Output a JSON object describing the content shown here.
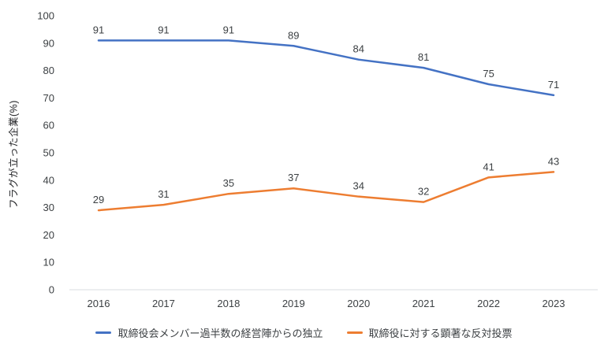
{
  "chart_data": {
    "type": "line",
    "title": "",
    "xlabel": "",
    "ylabel": "フラグが立った企業(%)",
    "ylim": [
      0,
      100
    ],
    "yticks": [
      0,
      10,
      20,
      30,
      40,
      50,
      60,
      70,
      80,
      90,
      100
    ],
    "grid": false,
    "legend_position": "bottom-center",
    "categories": [
      "2016",
      "2017",
      "2018",
      "2019",
      "2020",
      "2021",
      "2022",
      "2023"
    ],
    "series": [
      {
        "name": "取締役会メンバー過半数の経営陣からの独立",
        "color": "#4472C4",
        "values": [
          91,
          91,
          91,
          89,
          84,
          81,
          75,
          71
        ]
      },
      {
        "name": "取締役に対する顕著な反対投票",
        "color": "#ED7D31",
        "values": [
          29,
          31,
          35,
          37,
          34,
          32,
          41,
          43
        ]
      }
    ],
    "colors": {
      "axis_line": "#dadce0",
      "tick_label": "#3c4043",
      "data_label": "#3c4043"
    }
  }
}
